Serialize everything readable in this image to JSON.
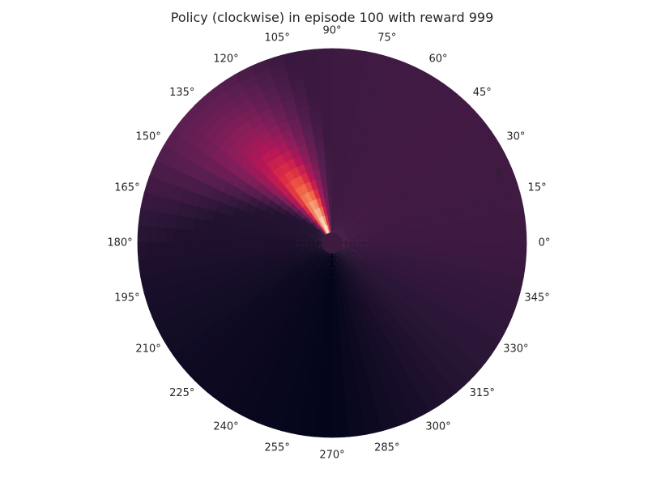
{
  "chart_data": {
    "type": "heatmap",
    "projection": "polar",
    "title": "Policy (clockwise) in episode 100 with reward 999",
    "theta_tick_labels": [
      "0°",
      "15°",
      "30°",
      "45°",
      "60°",
      "75°",
      "90°",
      "105°",
      "120°",
      "135°",
      "150°",
      "165°",
      "180°",
      "195°",
      "210°",
      "225°",
      "240°",
      "255°",
      "270°",
      "285°",
      "300°",
      "315°",
      "330°",
      "345°"
    ],
    "theta_ticks_deg": [
      0,
      15,
      30,
      45,
      60,
      75,
      90,
      105,
      120,
      135,
      150,
      165,
      180,
      195,
      210,
      225,
      240,
      255,
      270,
      285,
      300,
      315,
      330,
      345
    ],
    "radial_tick_labels": [
      "9"
    ],
    "radial_tick_values": [
      9
    ],
    "radial_tick_angle_deg": 22.5,
    "radial_range": [
      0,
      10
    ],
    "hidden_radius_fraction": 0.05,
    "colormap": "rocket",
    "colormap_stops": [
      "#03051a",
      "#2a1636",
      "#571e4f",
      "#841e5a",
      "#b41658",
      "#dd2c45",
      "#f06043",
      "#f5936a",
      "#f6bc9b",
      "#faebdd"
    ],
    "value_range": [
      0,
      1
    ],
    "grid": false,
    "angle_bins": 72,
    "radial_bins": 20,
    "field": {
      "description": "angle-dependent policy intensity (0..1); concentrated peak near 112°, strongest at small radius",
      "base_by_angle_deg": [
        [
          0,
          0.16
        ],
        [
          45,
          0.17
        ],
        [
          90,
          0.16
        ],
        [
          135,
          0.1
        ],
        [
          180,
          0.08
        ],
        [
          225,
          0.03
        ],
        [
          270,
          0.0
        ],
        [
          315,
          0.1
        ],
        [
          360,
          0.16
        ]
      ],
      "peak": {
        "center_deg": 112,
        "inner_value": 1.0,
        "decay_per_radius": 0.11,
        "angle_width_deg": 9,
        "outer_drift_deg": 28
      },
      "zero_strip": {
        "center_deg": 0,
        "value": 0.26
      }
    }
  }
}
